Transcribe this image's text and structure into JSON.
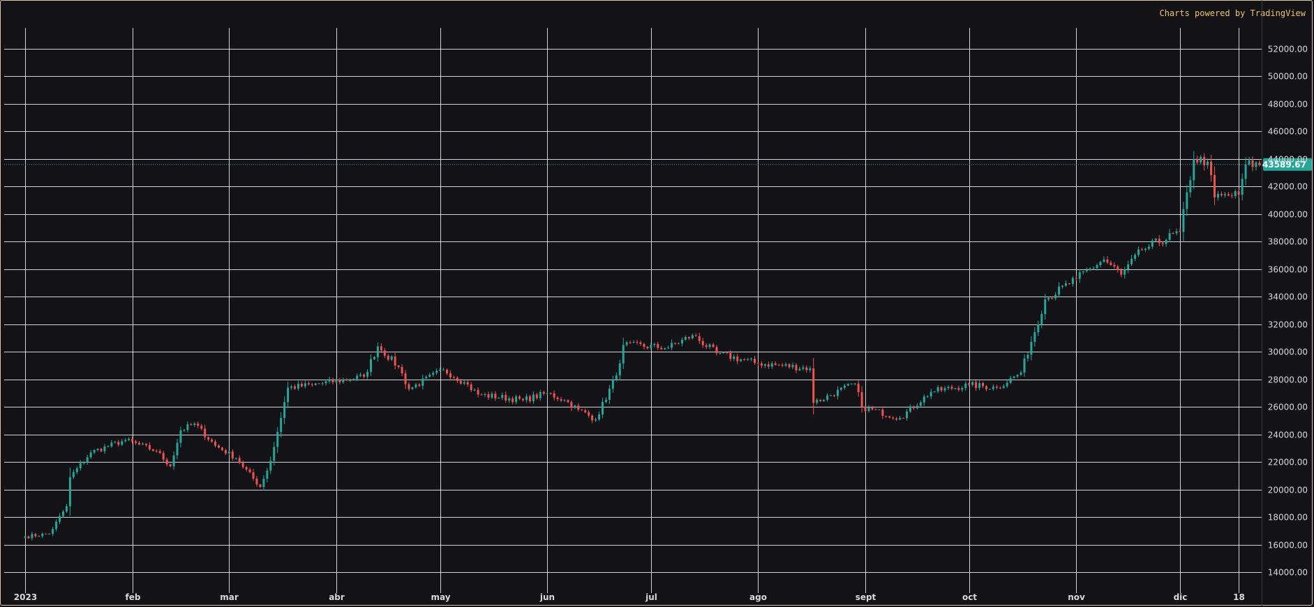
{
  "attribution": "Charts powered by TradingView",
  "chart_data": {
    "type": "candlestick",
    "x_axis": {
      "start": "2023-01-01",
      "ticks": [
        {
          "label": "2023",
          "date": "2023-01-01"
        },
        {
          "label": "feb",
          "date": "2023-02-01"
        },
        {
          "label": "mar",
          "date": "2023-03-01"
        },
        {
          "label": "abr",
          "date": "2023-04-01"
        },
        {
          "label": "may",
          "date": "2023-05-01"
        },
        {
          "label": "jun",
          "date": "2023-06-01"
        },
        {
          "label": "jul",
          "date": "2023-07-01"
        },
        {
          "label": "ago",
          "date": "2023-08-01"
        },
        {
          "label": "sept",
          "date": "2023-09-01"
        },
        {
          "label": "oct",
          "date": "2023-10-01"
        },
        {
          "label": "nov",
          "date": "2023-11-01"
        },
        {
          "label": "dic",
          "date": "2023-12-01"
        },
        {
          "label": "18",
          "date": "2023-12-18"
        }
      ]
    },
    "y_axis": {
      "range": [
        12500,
        53500
      ],
      "ticks": [
        "14000.00",
        "16000.00",
        "18000.00",
        "20000.00",
        "22000.00",
        "24000.00",
        "26000.00",
        "28000.00",
        "30000.00",
        "32000.00",
        "34000.00",
        "36000.00",
        "38000.00",
        "40000.00",
        "42000.00",
        "44000.00",
        "46000.00",
        "48000.00",
        "50000.00",
        "52000.00"
      ]
    },
    "grid": true,
    "current_price": {
      "value": 43589.67,
      "label": "43589.67",
      "color": "#26a69a"
    },
    "colors": {
      "up": "#26a69a",
      "down": "#ef5350",
      "background": "#131317"
    },
    "close_anchors": [
      [
        "2023-01-01",
        16600
      ],
      [
        "2023-01-08",
        16800
      ],
      [
        "2023-01-13",
        18800
      ],
      [
        "2023-01-14",
        20900
      ],
      [
        "2023-01-20",
        22700
      ],
      [
        "2023-01-30",
        23600
      ],
      [
        "2023-02-08",
        22800
      ],
      [
        "2023-02-12",
        21700
      ],
      [
        "2023-02-15",
        24300
      ],
      [
        "2023-02-19",
        24800
      ],
      [
        "2023-02-25",
        23200
      ],
      [
        "2023-03-03",
        22300
      ],
      [
        "2023-03-10",
        20200
      ],
      [
        "2023-03-13",
        22100
      ],
      [
        "2023-03-18",
        27400
      ],
      [
        "2023-03-25",
        27600
      ],
      [
        "2023-04-09",
        28200
      ],
      [
        "2023-04-13",
        30400
      ],
      [
        "2023-04-19",
        28900
      ],
      [
        "2023-04-22",
        27300
      ],
      [
        "2023-05-02",
        28700
      ],
      [
        "2023-05-08",
        27800
      ],
      [
        "2023-05-12",
        26900
      ],
      [
        "2023-05-25",
        26500
      ],
      [
        "2023-06-01",
        27000
      ],
      [
        "2023-06-06",
        26500
      ],
      [
        "2023-06-10",
        25800
      ],
      [
        "2023-06-15",
        25100
      ],
      [
        "2023-06-21",
        28300
      ],
      [
        "2023-06-23",
        30500
      ],
      [
        "2023-07-06",
        30300
      ],
      [
        "2023-07-13",
        31200
      ],
      [
        "2023-07-20",
        29900
      ],
      [
        "2023-07-31",
        29200
      ],
      [
        "2023-08-16",
        28800
      ],
      [
        "2023-08-17",
        26300
      ],
      [
        "2023-08-29",
        27700
      ],
      [
        "2023-08-31",
        26000
      ],
      [
        "2023-09-11",
        25200
      ],
      [
        "2023-09-20",
        27100
      ],
      [
        "2023-10-01",
        27600
      ],
      [
        "2023-10-09",
        27400
      ],
      [
        "2023-10-16",
        28500
      ],
      [
        "2023-10-23",
        33800
      ],
      [
        "2023-11-01",
        35300
      ],
      [
        "2023-11-09",
        36700
      ],
      [
        "2023-11-14",
        35600
      ],
      [
        "2023-11-20",
        37400
      ],
      [
        "2023-12-01",
        38700
      ],
      [
        "2023-12-05",
        44000
      ],
      [
        "2023-12-09",
        43800
      ],
      [
        "2023-12-11",
        41200
      ],
      [
        "2023-12-18",
        41400
      ],
      [
        "2023-12-20",
        43600
      ],
      [
        "2023-12-25",
        43589.67
      ]
    ]
  }
}
